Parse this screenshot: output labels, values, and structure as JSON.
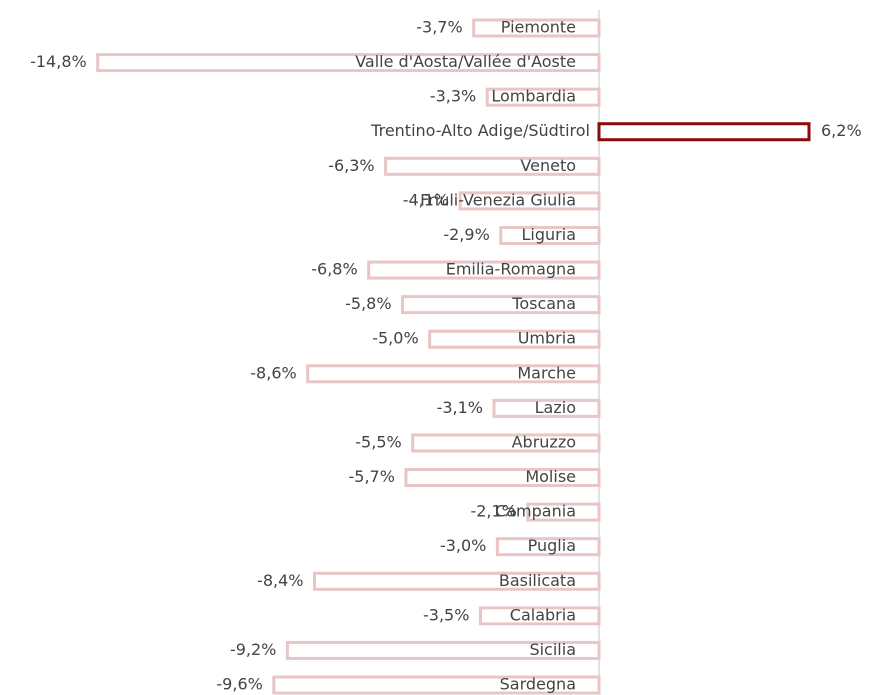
{
  "chart_data": {
    "type": "hbar",
    "categories": [
      "Piemonte",
      "Valle d'Aosta/Vallée d'Aoste",
      "Lombardia",
      "Trentino-Alto Adige/Südtirol",
      "Veneto",
      "Friuli-Venezia Giulia",
      "Liguria",
      "Emilia-Romagna",
      "Toscana",
      "Umbria",
      "Marche",
      "Lazio",
      "Abruzzo",
      "Molise",
      "Campania",
      "Puglia",
      "Basilicata",
      "Calabria",
      "Sicilia",
      "Sardegna"
    ],
    "values": [
      -3.7,
      -14.8,
      -3.3,
      6.2,
      -6.3,
      -4.1,
      -2.9,
      -6.8,
      -5.8,
      -5.0,
      -8.6,
      -3.1,
      -5.5,
      -5.7,
      -2.1,
      -3.0,
      -8.4,
      -3.5,
      -9.2,
      -9.6
    ],
    "value_labels": [
      "-3,7%",
      "-14,8%",
      "-3,3%",
      "6,2%",
      "-6,3%",
      "-4,1%",
      "-2,9%",
      "-6,8%",
      "-5,8%",
      "-5,0%",
      "-8,6%",
      "-3,1%",
      "-5,5%",
      "-5,7%",
      "-2,1%",
      "-3,0%",
      "-8,4%",
      "-3,5%",
      "-9,2%",
      "-9,6%"
    ],
    "negative_color": "#e8c6c6",
    "positive_color": "#8b0a0a"
  }
}
